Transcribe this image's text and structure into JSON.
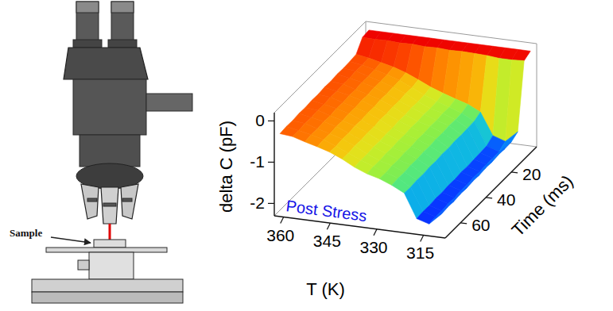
{
  "chart_data": {
    "type": "surface",
    "x_label": "T (K)",
    "y_label": "Time (ms)",
    "z_label": "delta C (pF)",
    "annotation": "Post Stress",
    "x": [
      362,
      358,
      354,
      350,
      346,
      342,
      338,
      334,
      330,
      326,
      322,
      318,
      314,
      310
    ],
    "y": [
      0,
      5,
      10,
      15,
      20,
      25,
      30,
      35,
      40,
      45,
      50,
      55,
      60,
      65,
      70
    ],
    "values": [
      [
        0,
        0,
        0,
        0,
        0,
        0,
        0,
        0,
        0,
        0,
        0,
        0,
        0,
        0
      ],
      [
        -0.02,
        -0.03,
        -0.02,
        -0.04,
        -0.03,
        -0.05,
        -0.04,
        -0.06,
        -0.05,
        -0.06,
        -0.07,
        -0.1,
        -0.1,
        -0.08
      ],
      [
        -0.28,
        -0.33,
        -0.4,
        -0.47,
        -0.57,
        -0.7,
        -0.84,
        -0.95,
        -1.05,
        -1.14,
        -1.29,
        -1.82,
        -1.92,
        -1.65
      ],
      [
        -0.3,
        -0.35,
        -0.42,
        -0.5,
        -0.6,
        -0.74,
        -0.88,
        -1.0,
        -1.1,
        -1.2,
        -1.36,
        -1.92,
        -2.02,
        -1.74
      ],
      [
        -0.31,
        -0.34,
        -0.43,
        -0.51,
        -0.61,
        -0.73,
        -0.89,
        -1.01,
        -1.09,
        -1.21,
        -1.37,
        -1.93,
        -2.03,
        -1.75
      ],
      [
        -0.3,
        -0.36,
        -0.42,
        -0.5,
        -0.62,
        -0.75,
        -0.88,
        -1.0,
        -1.11,
        -1.2,
        -1.38,
        -1.94,
        -2.02,
        -1.74
      ],
      [
        -0.32,
        -0.35,
        -0.44,
        -0.52,
        -0.61,
        -0.74,
        -0.9,
        -1.02,
        -1.1,
        -1.22,
        -1.37,
        -1.95,
        -2.04,
        -1.76
      ],
      [
        -0.31,
        -0.37,
        -0.43,
        -0.51,
        -0.63,
        -0.76,
        -0.89,
        -1.01,
        -1.12,
        -1.21,
        -1.39,
        -1.94,
        -2.03,
        -1.75
      ],
      [
        -0.33,
        -0.36,
        -0.45,
        -0.53,
        -0.62,
        -0.75,
        -0.91,
        -1.03,
        -1.11,
        -1.23,
        -1.38,
        -1.96,
        -2.05,
        -1.77
      ],
      [
        -0.32,
        -0.38,
        -0.44,
        -0.52,
        -0.64,
        -0.77,
        -0.9,
        -1.02,
        -1.13,
        -1.22,
        -1.4,
        -1.95,
        -2.04,
        -1.76
      ],
      [
        -0.34,
        -0.37,
        -0.46,
        -0.54,
        -0.63,
        -0.76,
        -0.92,
        -1.04,
        -1.12,
        -1.24,
        -1.39,
        -1.97,
        -2.06,
        -1.78
      ],
      [
        -0.33,
        -0.39,
        -0.45,
        -0.53,
        -0.65,
        -0.78,
        -0.91,
        -1.03,
        -1.14,
        -1.23,
        -1.41,
        -1.96,
        -2.05,
        -1.77
      ],
      [
        -0.35,
        -0.38,
        -0.47,
        -0.55,
        -0.64,
        -0.77,
        -0.93,
        -1.05,
        -1.13,
        -1.25,
        -1.4,
        -1.98,
        -2.07,
        -1.79
      ],
      [
        -0.34,
        -0.4,
        -0.46,
        -0.54,
        -0.66,
        -0.79,
        -0.92,
        -1.04,
        -1.15,
        -1.24,
        -1.42,
        -1.97,
        -2.06,
        -1.78
      ],
      [
        -0.36,
        -0.39,
        -0.48,
        -0.56,
        -0.65,
        -0.78,
        -0.94,
        -1.06,
        -1.14,
        -1.26,
        -1.41,
        -1.99,
        -2.08,
        -1.8
      ]
    ],
    "xlim": [
      363,
      308
    ],
    "xticks": [
      360,
      345,
      330,
      315
    ],
    "ylim": [
      0,
      72
    ],
    "yticks": [
      20,
      40,
      60
    ],
    "zlim": [
      -2.3,
      0.2
    ],
    "zticks": [
      -2,
      -1,
      0
    ]
  },
  "illustration": {
    "label": "Sample"
  }
}
